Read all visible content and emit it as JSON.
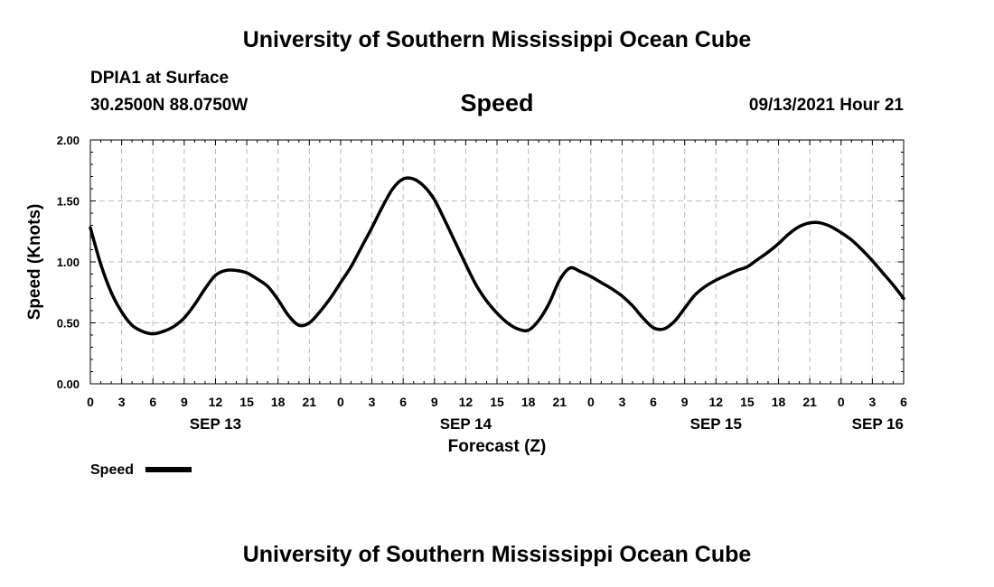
{
  "page": {
    "title_top": "University of Southern Mississippi Ocean Cube",
    "title_bottom": "University of Southern Mississippi Ocean Cube",
    "station": "DPIA1 at Surface",
    "coordinates": "30.2500N  88.0750W",
    "plot_title": "Speed",
    "timestamp": "09/13/2021 Hour 21"
  },
  "colors": {
    "line": "#000000",
    "grid": "#bbbbbb",
    "background": "#ffffff"
  },
  "chart_data": {
    "type": "line",
    "title": "Speed",
    "xlabel": "Forecast (Z)",
    "ylabel": "Speed (Knots)",
    "ylim": [
      0,
      2
    ],
    "xlim_hours": [
      0,
      78
    ],
    "grid": true,
    "y_ticks": [
      "0.00",
      "0.50",
      "1.00",
      "1.50",
      "2.00"
    ],
    "y_tick_values": [
      0,
      0.5,
      1.0,
      1.5,
      2.0
    ],
    "x_tick_hours": [
      0,
      3,
      6,
      9,
      12,
      15,
      18,
      21,
      24,
      27,
      30,
      33,
      36,
      39,
      42,
      45,
      48,
      51,
      54,
      57,
      60,
      63,
      66,
      69,
      72,
      75,
      78
    ],
    "x_tick_labels": [
      "0",
      "3",
      "6",
      "9",
      "12",
      "15",
      "18",
      "21",
      "0",
      "3",
      "6",
      "9",
      "12",
      "15",
      "18",
      "21",
      "0",
      "3",
      "6",
      "9",
      "12",
      "15",
      "18",
      "21",
      "0",
      "3",
      "6"
    ],
    "date_labels": [
      {
        "hour": 12,
        "label": "SEP 13"
      },
      {
        "hour": 36,
        "label": "SEP 14"
      },
      {
        "hour": 60,
        "label": "SEP 15"
      },
      {
        "hour": 78,
        "label": "SEP 16"
      }
    ],
    "legend": {
      "label": "Speed",
      "position": "bottom-left"
    },
    "series": [
      {
        "name": "Speed",
        "x": [
          0,
          1,
          2,
          3,
          4,
          5,
          6,
          7,
          8,
          9,
          10,
          11,
          12,
          13,
          14,
          15,
          16,
          17,
          18,
          19,
          20,
          21,
          22,
          23,
          24,
          25,
          26,
          27,
          28,
          29,
          30,
          31,
          32,
          33,
          34,
          35,
          36,
          37,
          38,
          39,
          40,
          41,
          42,
          43,
          44,
          45,
          46,
          47,
          48,
          49,
          50,
          51,
          52,
          53,
          54,
          55,
          56,
          57,
          58,
          59,
          60,
          61,
          62,
          63,
          64,
          65,
          66,
          67,
          68,
          69,
          70,
          71,
          72,
          73,
          74,
          75,
          76,
          77,
          78
        ],
        "values": [
          1.28,
          0.98,
          0.75,
          0.59,
          0.48,
          0.43,
          0.41,
          0.43,
          0.47,
          0.54,
          0.65,
          0.78,
          0.89,
          0.93,
          0.93,
          0.91,
          0.86,
          0.8,
          0.69,
          0.56,
          0.48,
          0.5,
          0.59,
          0.7,
          0.83,
          0.96,
          1.12,
          1.28,
          1.45,
          1.6,
          1.68,
          1.68,
          1.62,
          1.51,
          1.34,
          1.16,
          0.98,
          0.81,
          0.68,
          0.58,
          0.5,
          0.45,
          0.44,
          0.52,
          0.66,
          0.85,
          0.95,
          0.92,
          0.88,
          0.83,
          0.78,
          0.72,
          0.64,
          0.54,
          0.46,
          0.45,
          0.51,
          0.62,
          0.73,
          0.8,
          0.85,
          0.89,
          0.93,
          0.96,
          1.02,
          1.08,
          1.15,
          1.23,
          1.29,
          1.32,
          1.32,
          1.29,
          1.24,
          1.18,
          1.1,
          1.01,
          0.91,
          0.81,
          0.7
        ]
      }
    ]
  }
}
